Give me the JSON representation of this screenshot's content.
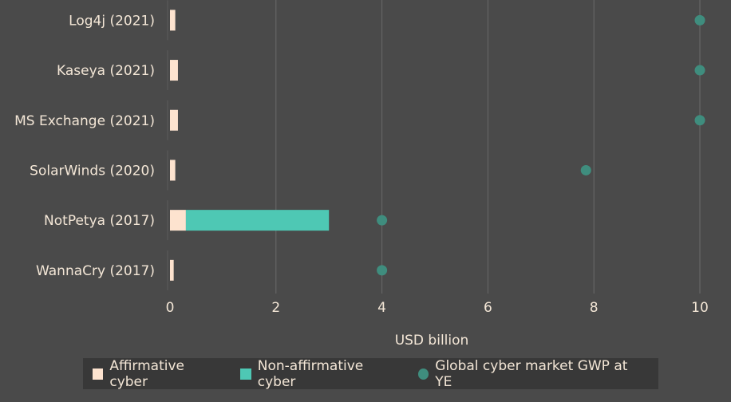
{
  "chart_data": {
    "type": "bar",
    "orientation": "horizontal",
    "stacked": true,
    "categories": [
      "Log4j (2021)",
      "Kaseya (2021)",
      "MS Exchange (2021)",
      "SolarWinds (2020)",
      "NotPetya (2017)",
      "WannaCry (2017)"
    ],
    "series": [
      {
        "name": "Affirmative cyber",
        "color": "#fde3cf",
        "values": [
          0.1,
          0.15,
          0.15,
          0.1,
          0.3,
          0.07
        ]
      },
      {
        "name": "Non-affirmative cyber",
        "color": "#4ec8b4",
        "values": [
          0,
          0,
          0,
          0,
          2.7,
          0
        ]
      }
    ],
    "markers": {
      "name": "Global cyber market GWP at YE",
      "color": "#3f8d7e",
      "values": [
        10,
        10,
        10,
        7.85,
        4,
        4
      ]
    },
    "xlabel": "USD billion",
    "xlim": [
      0,
      10
    ],
    "xticks": [
      0,
      2,
      4,
      6,
      8,
      10
    ],
    "grid": true,
    "legend_position": "bottom"
  }
}
